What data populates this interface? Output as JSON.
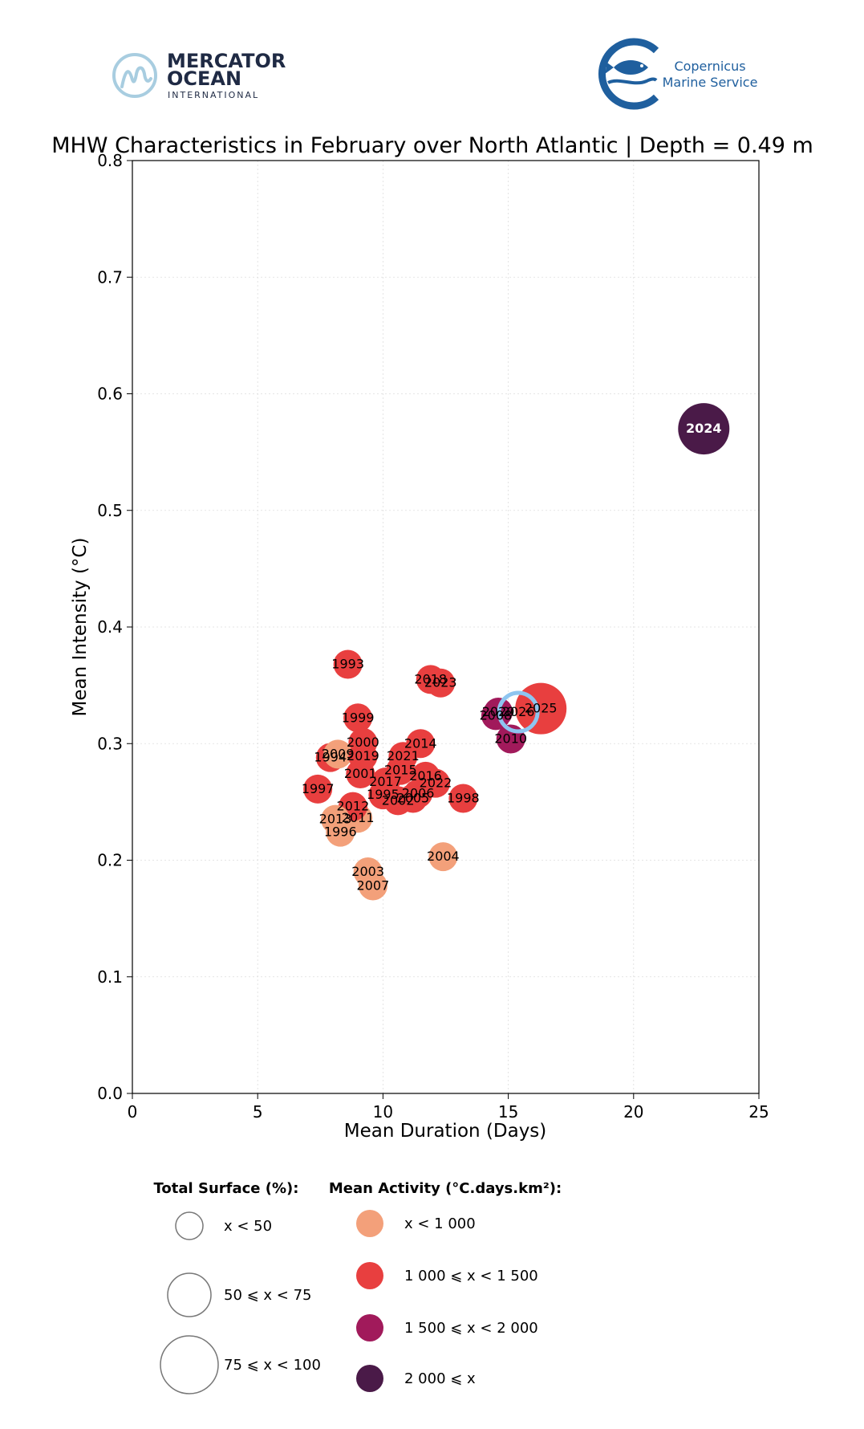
{
  "logos": {
    "mercator": {
      "line1": "MERCATOR",
      "line2": "OCEAN",
      "line3": "INTERNATIONAL",
      "color": "#1f2a44",
      "accent": "#a8cde0"
    },
    "copernicus": {
      "line1": "Copernicus",
      "line2": "Marine Service",
      "color": "#1f5f9e"
    }
  },
  "chart_data": {
    "type": "scatter",
    "title": "MHW Characteristics in February over North Atlantic | Depth = 0.49 m",
    "xlabel": "Mean Duration (Days)",
    "ylabel": "Mean Intensity (°C)",
    "xlim": [
      0,
      25
    ],
    "ylim": [
      0.0,
      0.8
    ],
    "xticks": [
      0,
      5,
      10,
      15,
      20,
      25
    ],
    "yticks": [
      0.0,
      0.1,
      0.2,
      0.3,
      0.4,
      0.5,
      0.6,
      0.7,
      0.8
    ],
    "grid": true,
    "points": [
      {
        "label": "1993",
        "x": 8.6,
        "y": 0.368,
        "activity": "1000-1500",
        "surface": "<50"
      },
      {
        "label": "1994",
        "x": 7.9,
        "y": 0.288,
        "activity": "1000-1500",
        "surface": "<50"
      },
      {
        "label": "1995",
        "x": 10.0,
        "y": 0.256,
        "activity": "1000-1500",
        "surface": "<50"
      },
      {
        "label": "1996",
        "x": 8.3,
        "y": 0.224,
        "activity": "<1000",
        "surface": "<50"
      },
      {
        "label": "1997",
        "x": 7.4,
        "y": 0.261,
        "activity": "1000-1500",
        "surface": "<50"
      },
      {
        "label": "1998",
        "x": 13.2,
        "y": 0.253,
        "activity": "1000-1500",
        "surface": "<50"
      },
      {
        "label": "1999",
        "x": 9.0,
        "y": 0.322,
        "activity": "1000-1500",
        "surface": "<50"
      },
      {
        "label": "2000",
        "x": 9.2,
        "y": 0.301,
        "activity": "1000-1500",
        "surface": "<50"
      },
      {
        "label": "2001",
        "x": 9.1,
        "y": 0.274,
        "activity": "1000-1500",
        "surface": "<50"
      },
      {
        "label": "2002",
        "x": 10.6,
        "y": 0.251,
        "activity": "1000-1500",
        "surface": "<50"
      },
      {
        "label": "2003",
        "x": 9.4,
        "y": 0.19,
        "activity": "<1000",
        "surface": "<50"
      },
      {
        "label": "2004",
        "x": 12.4,
        "y": 0.203,
        "activity": "<1000",
        "surface": "<50"
      },
      {
        "label": "2005",
        "x": 11.2,
        "y": 0.253,
        "activity": "1000-1500",
        "surface": "<50"
      },
      {
        "label": "2006",
        "x": 11.4,
        "y": 0.257,
        "activity": "1000-1500",
        "surface": "<50"
      },
      {
        "label": "2007",
        "x": 9.6,
        "y": 0.178,
        "activity": "<1000",
        "surface": "<50"
      },
      {
        "label": "2008",
        "x": 14.5,
        "y": 0.324,
        "activity": "1500-2000",
        "surface": "<50"
      },
      {
        "label": "2009",
        "x": 8.2,
        "y": 0.291,
        "activity": "<1000",
        "surface": "<50"
      },
      {
        "label": "2010",
        "x": 15.1,
        "y": 0.304,
        "activity": "1500-2000",
        "surface": "<50"
      },
      {
        "label": "2011",
        "x": 9.0,
        "y": 0.236,
        "activity": "<1000",
        "surface": "<50"
      },
      {
        "label": "2012",
        "x": 8.8,
        "y": 0.246,
        "activity": "1000-1500",
        "surface": "<50"
      },
      {
        "label": "2013",
        "x": 8.1,
        "y": 0.235,
        "activity": "<1000",
        "surface": "<50"
      },
      {
        "label": "2014",
        "x": 11.5,
        "y": 0.3,
        "activity": "1000-1500",
        "surface": "<50"
      },
      {
        "label": "2015",
        "x": 10.7,
        "y": 0.277,
        "activity": "1000-1500",
        "surface": "<50"
      },
      {
        "label": "2016",
        "x": 11.7,
        "y": 0.272,
        "activity": "1000-1500",
        "surface": "<50"
      },
      {
        "label": "2017",
        "x": 10.1,
        "y": 0.267,
        "activity": "1000-1500",
        "surface": "<50"
      },
      {
        "label": "2018",
        "x": 11.9,
        "y": 0.355,
        "activity": "1000-1500",
        "surface": "<50"
      },
      {
        "label": "2019",
        "x": 9.2,
        "y": 0.289,
        "activity": "1000-1500",
        "surface": "<50"
      },
      {
        "label": "2020",
        "x": 14.6,
        "y": 0.327,
        "activity": "1500-2000",
        "surface": "<50"
      },
      {
        "label": "2021",
        "x": 10.8,
        "y": 0.289,
        "activity": "1000-1500",
        "surface": "<50"
      },
      {
        "label": "2022",
        "x": 12.1,
        "y": 0.266,
        "activity": "1000-1500",
        "surface": "<50"
      },
      {
        "label": "2023",
        "x": 12.3,
        "y": 0.352,
        "activity": "1000-1500",
        "surface": "<50"
      },
      {
        "label": "2024",
        "x": 22.8,
        "y": 0.57,
        "activity": ">=2000",
        "surface": "50-75",
        "label_color": "#ffffff"
      },
      {
        "label": "2025",
        "x": 16.3,
        "y": 0.33,
        "activity": "1000-1500",
        "surface": "50-75"
      },
      {
        "label": "2026",
        "x": 15.4,
        "y": 0.327,
        "activity": "none",
        "surface": "<50",
        "highlight": true,
        "edge_color": "#8ec5f0"
      }
    ],
    "legend": {
      "surface_title": "Total Surface (%):",
      "surface_entries": [
        {
          "label": "x < 50",
          "size": "small"
        },
        {
          "label": "50 ⩽ x < 75",
          "size": "medium"
        },
        {
          "label": "75 ⩽ x < 100",
          "size": "large"
        }
      ],
      "activity_title": "Mean Activity (°C.days.km²):",
      "activity_entries": [
        {
          "label": "x < 1 000",
          "color": "#f3a07a"
        },
        {
          "label": "1 000 ⩽ x < 1 500",
          "color": "#e83f3f"
        },
        {
          "label": "1 500 ⩽ x < 2 000",
          "color": "#a11a5b"
        },
        {
          "label": "2 000 ⩽ x",
          "color": "#4a1a48"
        }
      ]
    }
  }
}
